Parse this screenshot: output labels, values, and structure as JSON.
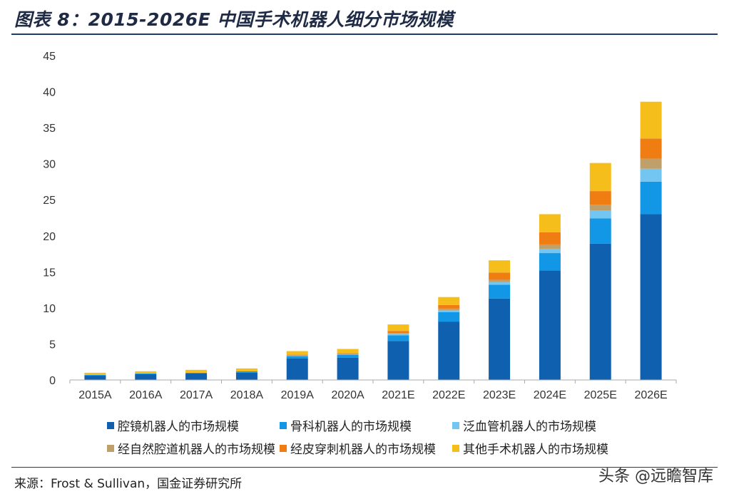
{
  "title": "图表 8：2015-2026E 中国手术机器人细分市场规模",
  "source": "来源：Frost & Sullivan，国金证券研究所",
  "watermark": "头条 @远瞻智库",
  "chart_data": {
    "type": "bar",
    "stacked": true,
    "title": "图表 8：2015-2026E 中国手术机器人细分市场规模",
    "xlabel": "",
    "ylabel": "",
    "ylim": [
      0,
      45
    ],
    "yticks": [
      0,
      5,
      10,
      15,
      20,
      25,
      30,
      35,
      40,
      45
    ],
    "grid": false,
    "legend_position": "bottom",
    "categories": [
      "2015A",
      "2016A",
      "2017A",
      "2018A",
      "2019A",
      "2020A",
      "2021E",
      "2022E",
      "2023E",
      "2024E",
      "2025E",
      "2026E"
    ],
    "series": [
      {
        "name": "腔镜机器人的市场规模",
        "color": "#1060b0",
        "values": [
          0.6,
          0.8,
          0.9,
          1.0,
          3.0,
          3.1,
          5.4,
          8.1,
          11.3,
          15.2,
          18.9,
          23.0
        ]
      },
      {
        "name": "骨科机器人的市场规模",
        "color": "#1296e6",
        "values": [
          0.1,
          0.1,
          0.1,
          0.2,
          0.3,
          0.4,
          0.8,
          1.3,
          1.9,
          2.4,
          3.5,
          4.5
        ]
      },
      {
        "name": "泛血管机器人的市场规模",
        "color": "#74c6f2",
        "values": [
          0.0,
          0.0,
          0.0,
          0.0,
          0.1,
          0.1,
          0.2,
          0.3,
          0.4,
          0.6,
          1.1,
          1.8
        ]
      },
      {
        "name": "经自然腔道机器人的市场规模",
        "color": "#c0a06a",
        "values": [
          0.0,
          0.0,
          0.0,
          0.0,
          0.0,
          0.0,
          0.1,
          0.2,
          0.3,
          0.6,
          0.8,
          1.4
        ]
      },
      {
        "name": "经皮穿刺机器人的市场规模",
        "color": "#ef7d12",
        "values": [
          0.0,
          0.0,
          0.0,
          0.0,
          0.1,
          0.1,
          0.3,
          0.5,
          1.0,
          1.7,
          1.9,
          2.8
        ]
      },
      {
        "name": "其他手术机器人的市场规模",
        "color": "#f6be1a",
        "values": [
          0.3,
          0.3,
          0.4,
          0.4,
          0.5,
          0.6,
          0.9,
          1.1,
          1.7,
          2.5,
          3.9,
          5.1
        ]
      }
    ]
  }
}
